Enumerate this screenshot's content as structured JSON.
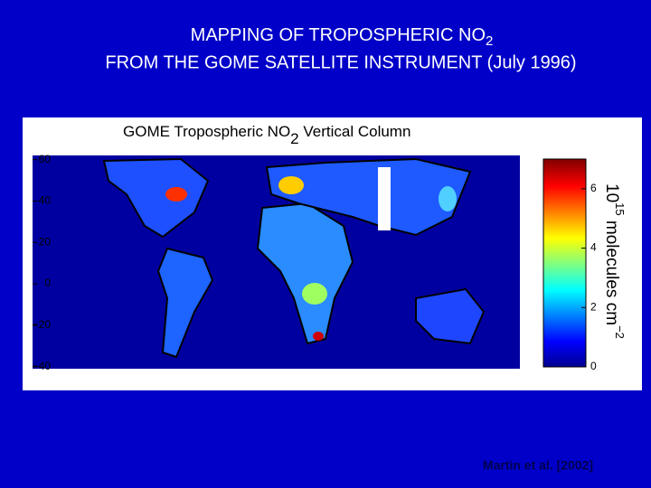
{
  "slide": {
    "title_line1": "MAPPING OF TROPOSPHERIC NO",
    "title_line1_sub": "2",
    "title_line2": "FROM THE GOME SATELLITE INSTRUMENT (July 1996)",
    "citation": "Martin et al. [2002]"
  },
  "map": {
    "title": "GOME Tropospheric NO",
    "title_sub": "2",
    "title_end": " Vertical Column",
    "ylim": [
      -41,
      62
    ],
    "yticks": [
      60,
      40,
      20,
      0,
      {
        "value": -20,
        "label": "−20"
      },
      {
        "value": -40,
        "label": "−40"
      }
    ],
    "colorbar": {
      "clim": [
        0,
        7
      ],
      "ticks": [
        0,
        2,
        4,
        6
      ],
      "label_base": "10",
      "label_exp": "15",
      "label_unit": " molecules cm",
      "label_unit_exp": "−2"
    }
  }
}
